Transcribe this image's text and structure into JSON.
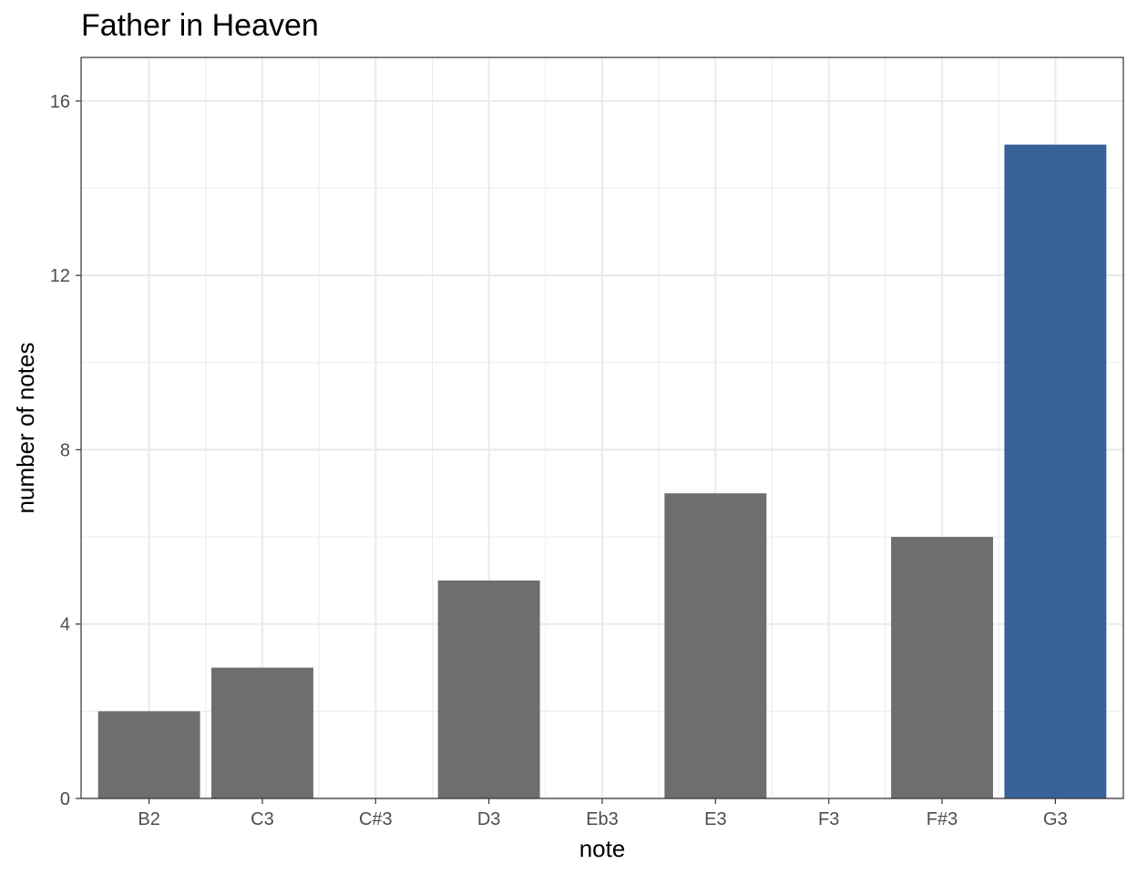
{
  "chart_data": {
    "type": "bar",
    "title": "Father in Heaven",
    "xlabel": "note",
    "ylabel": "number of notes",
    "categories": [
      "B2",
      "C3",
      "C#3",
      "D3",
      "Eb3",
      "E3",
      "F3",
      "F#3",
      "G3"
    ],
    "values": [
      2,
      3,
      0,
      5,
      0,
      7,
      0,
      6,
      15
    ],
    "highlight": "G3",
    "ylim": [
      0,
      17
    ],
    "yticks": [
      0,
      4,
      8,
      12,
      16
    ],
    "grid": true,
    "legend": "none",
    "colors": {
      "bar": "#6e6e6e",
      "highlight": "#376298",
      "grid": "#ebebeb",
      "border": "#333333"
    }
  }
}
